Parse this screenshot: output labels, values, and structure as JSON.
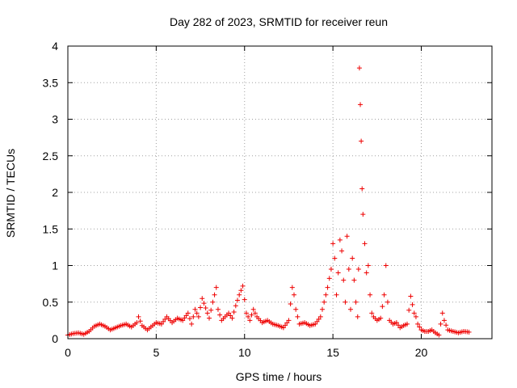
{
  "chart_data": {
    "type": "scatter",
    "title": "Day 282 of 2023, SRMTID for receiver reun",
    "xlabel": "GPS time / hours",
    "ylabel": "SRMTID / TECUs",
    "xlim": [
      0,
      24
    ],
    "ylim": [
      0,
      4
    ],
    "xticks": [
      0,
      5,
      10,
      15,
      20
    ],
    "xtick_labels": [
      "0",
      "5",
      "10",
      "15",
      "20"
    ],
    "yticks": [
      0,
      0.5,
      1,
      1.5,
      2,
      2.5,
      3,
      3.5,
      4
    ],
    "ytick_labels": [
      "0",
      "0.5",
      "1",
      "1.5",
      "2",
      "2.5",
      "3",
      "3.5",
      "4"
    ],
    "grid": true,
    "marker": "+",
    "color": "#ee0000",
    "series": [
      {
        "name": "SRMTID",
        "x": [
          0.0,
          0.3,
          0.6,
          0.9,
          1.2,
          1.5,
          1.8,
          2.1,
          2.4,
          2.7,
          3.0,
          3.3,
          3.6,
          3.9,
          4.0,
          4.2,
          4.5,
          4.8,
          5.0,
          5.3,
          5.6,
          5.9,
          6.2,
          6.5,
          6.8,
          7.0,
          7.2,
          7.4,
          7.6,
          7.8,
          8.0,
          8.2,
          8.4,
          8.5,
          8.7,
          8.9,
          9.1,
          9.3,
          9.5,
          9.7,
          9.9,
          10.1,
          10.3,
          10.5,
          10.7,
          11.0,
          11.3,
          11.6,
          11.9,
          12.2,
          12.5,
          12.7,
          12.8,
          12.9,
          13.1,
          13.4,
          13.7,
          14.0,
          14.3,
          14.5,
          14.7,
          14.9,
          15.0,
          15.1,
          15.2,
          15.3,
          15.4,
          15.5,
          15.6,
          15.7,
          15.8,
          15.9,
          16.0,
          16.1,
          16.2,
          16.3,
          16.4,
          16.45,
          16.5,
          16.55,
          16.6,
          16.65,
          16.7,
          16.8,
          16.9,
          17.0,
          17.1,
          17.2,
          17.3,
          17.5,
          17.7,
          17.9,
          18.0,
          18.1,
          18.2,
          18.4,
          18.6,
          18.8,
          19.0,
          19.2,
          19.4,
          19.6,
          19.7,
          19.8,
          20.0,
          20.2,
          20.4,
          20.6,
          20.8,
          21.0,
          21.2,
          21.3,
          21.5,
          21.8,
          22.1,
          22.4,
          22.7
        ],
        "y": [
          0.05,
          0.07,
          0.08,
          0.06,
          0.1,
          0.17,
          0.2,
          0.17,
          0.12,
          0.15,
          0.18,
          0.2,
          0.16,
          0.22,
          0.3,
          0.18,
          0.12,
          0.18,
          0.22,
          0.2,
          0.3,
          0.22,
          0.28,
          0.25,
          0.35,
          0.2,
          0.4,
          0.3,
          0.55,
          0.42,
          0.28,
          0.5,
          0.7,
          0.4,
          0.25,
          0.3,
          0.35,
          0.28,
          0.45,
          0.6,
          0.72,
          0.35,
          0.25,
          0.4,
          0.3,
          0.22,
          0.25,
          0.2,
          0.18,
          0.15,
          0.25,
          0.7,
          0.6,
          0.4,
          0.2,
          0.22,
          0.18,
          0.2,
          0.3,
          0.5,
          0.7,
          0.95,
          1.3,
          1.1,
          0.6,
          0.9,
          1.35,
          1.2,
          0.8,
          0.5,
          1.4,
          0.95,
          0.4,
          1.1,
          0.8,
          0.5,
          0.3,
          0.95,
          3.7,
          3.2,
          2.7,
          2.05,
          1.7,
          1.3,
          0.9,
          1.0,
          0.6,
          0.35,
          0.3,
          0.25,
          0.28,
          0.6,
          1.0,
          0.5,
          0.25,
          0.2,
          0.22,
          0.15,
          0.18,
          0.2,
          0.58,
          0.35,
          0.3,
          0.2,
          0.12,
          0.1,
          0.1,
          0.12,
          0.08,
          0.05,
          0.35,
          0.25,
          0.12,
          0.1,
          0.08,
          0.1,
          0.09
        ]
      }
    ]
  }
}
